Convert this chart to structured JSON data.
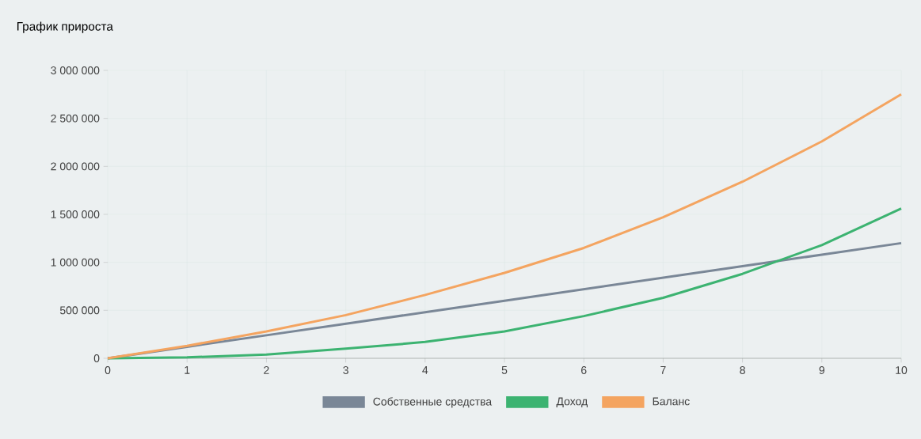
{
  "chart_data": {
    "type": "line",
    "title": "График прироста",
    "x": [
      0,
      1,
      2,
      3,
      4,
      5,
      6,
      7,
      8,
      9,
      10
    ],
    "series": [
      {
        "name": "Собственные средства",
        "color": "#7a8797",
        "values": [
          0,
          120000,
          240000,
          360000,
          480000,
          600000,
          720000,
          840000,
          960000,
          1080000,
          1200000
        ]
      },
      {
        "name": "Доход",
        "color": "#3cb371",
        "values": [
          0,
          10000,
          40000,
          100000,
          170000,
          280000,
          440000,
          630000,
          880000,
          1180000,
          1560000
        ]
      },
      {
        "name": "Баланс",
        "color": "#f4a460",
        "values": [
          0,
          130000,
          280000,
          450000,
          660000,
          890000,
          1150000,
          1470000,
          1840000,
          2260000,
          2750000
        ]
      }
    ],
    "xlim": [
      0,
      10
    ],
    "xticks": [
      0,
      1,
      2,
      3,
      4,
      5,
      6,
      7,
      8,
      9,
      10
    ],
    "ylim": [
      0,
      3000000
    ],
    "yticks": [
      0,
      {
        "value": 500000,
        "label": "500 000"
      },
      {
        "value": 1000000,
        "label": "1 000 000"
      },
      {
        "value": 1500000,
        "label": "1 500 000"
      },
      {
        "value": 2000000,
        "label": "2 000 000"
      },
      {
        "value": 2500000,
        "label": "2 500 000"
      },
      {
        "value": 3000000,
        "label": "3 000 000"
      }
    ],
    "grid": true,
    "legend": "bottom",
    "marker": "none",
    "line_style": "solid"
  }
}
